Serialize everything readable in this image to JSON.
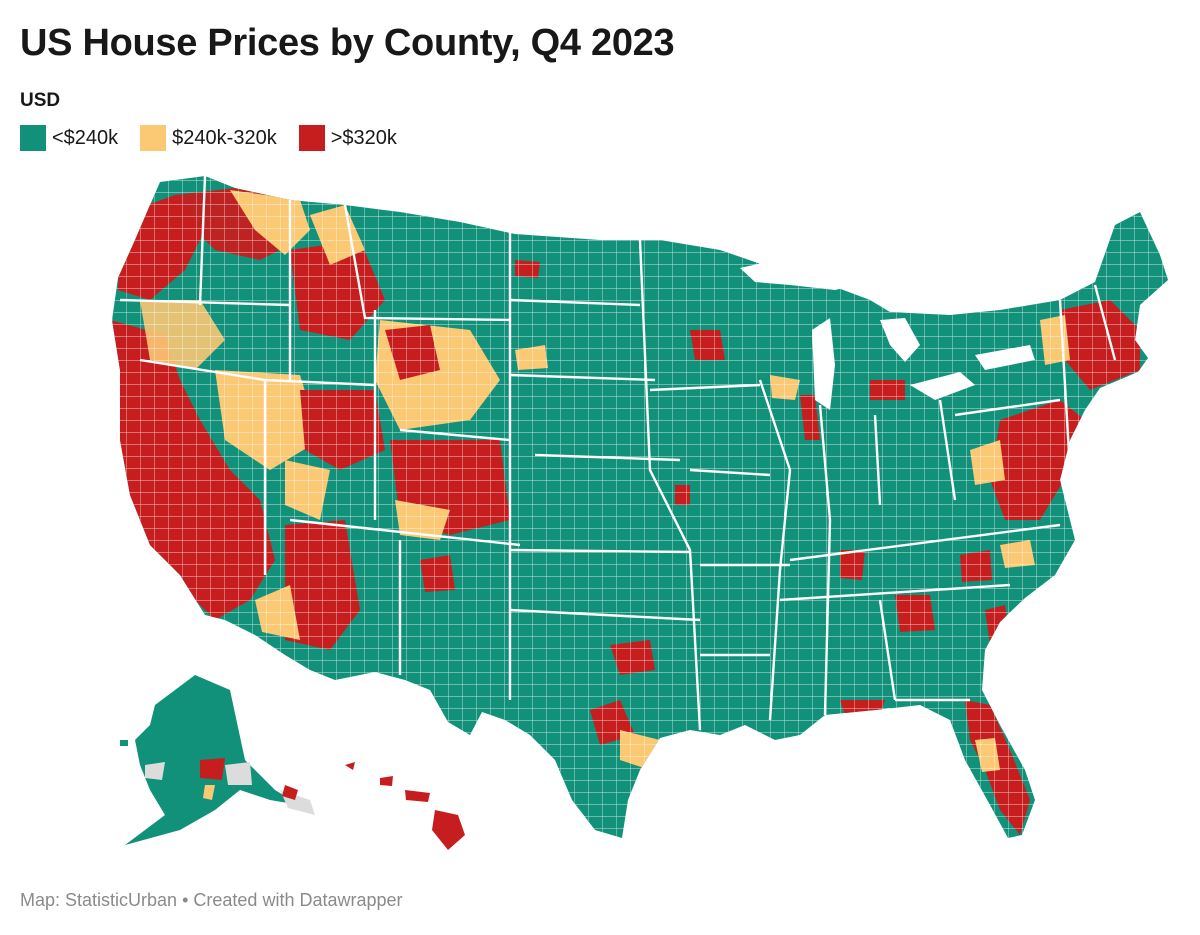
{
  "title": "US House Prices by County, Q4 2023",
  "legend": {
    "title": "USD",
    "items": [
      {
        "label": "<$240k",
        "color": "#12917a"
      },
      {
        "label": "$240k-320k",
        "color": "#fbc874"
      },
      {
        "label": ">$320k",
        "color": "#c61e1e"
      }
    ]
  },
  "colors": {
    "low": "#12917a",
    "mid": "#fbc874",
    "high": "#c61e1e",
    "no_data": "#dcdcdc",
    "border": "#ffffff"
  },
  "footer": {
    "source": "Map: StatisticUrban",
    "separator": "•",
    "credit": "Created with Datawrapper"
  }
}
